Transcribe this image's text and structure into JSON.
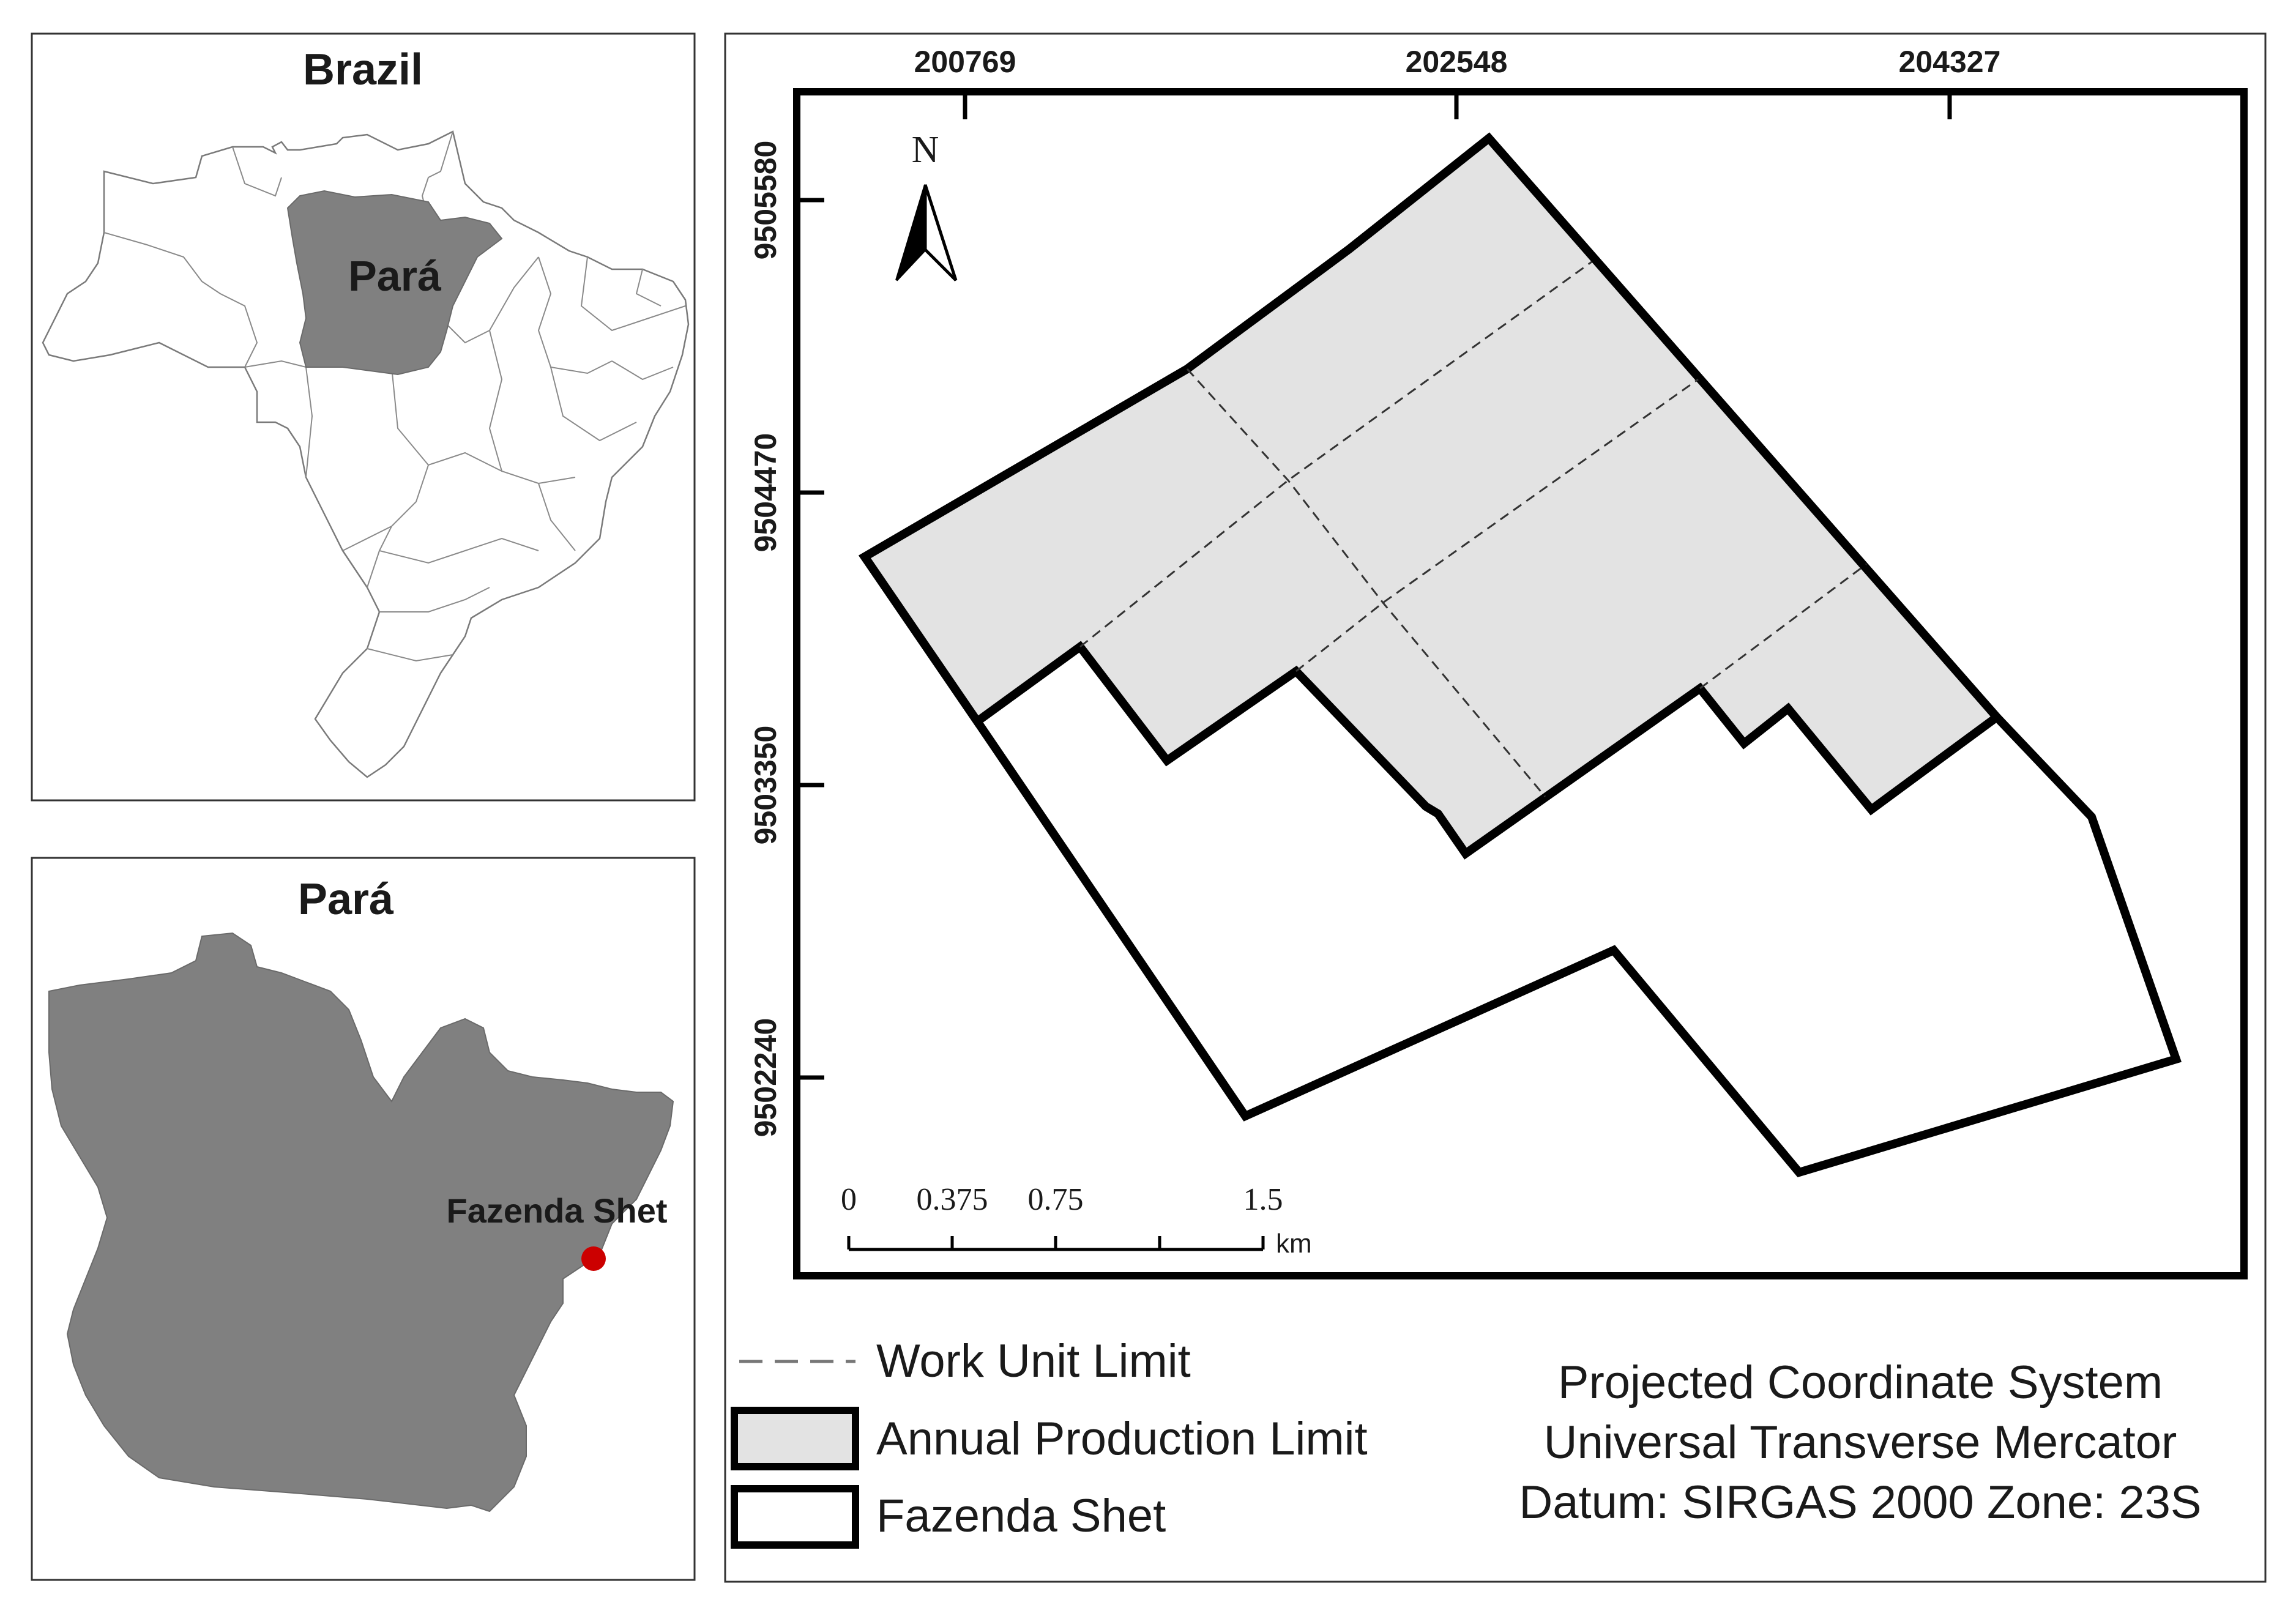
{
  "inset_brazil": {
    "title": "Brazil",
    "state_label": "Pará",
    "state_fill": "#808080"
  },
  "inset_para": {
    "title": "Pará",
    "point_label": "Fazenda Shet",
    "point_color": "#cc0000",
    "fill": "#808080"
  },
  "main_map": {
    "x_ticks": [
      "200769",
      "202548",
      "204327"
    ],
    "y_ticks": [
      "9505580",
      "9504470",
      "9503350",
      "9502240"
    ],
    "north_label": "N",
    "scale_labels": [
      "0",
      "0.375",
      "0.75",
      "1.5"
    ],
    "scale_unit": "km",
    "production_fill": "#e3e3e3"
  },
  "legend": {
    "items": [
      {
        "label": "Work Unit Limit",
        "symbol": "dashed-line"
      },
      {
        "label": "Annual Production Limit",
        "symbol": "grey-box"
      },
      {
        "label": "Fazenda Shet",
        "symbol": "white-box"
      }
    ]
  },
  "crs": {
    "line1": "Projected Coordinate System",
    "line2": "Universal Transverse Mercator",
    "line3": "Datum: SIRGAS 2000 Zone: 23S"
  }
}
